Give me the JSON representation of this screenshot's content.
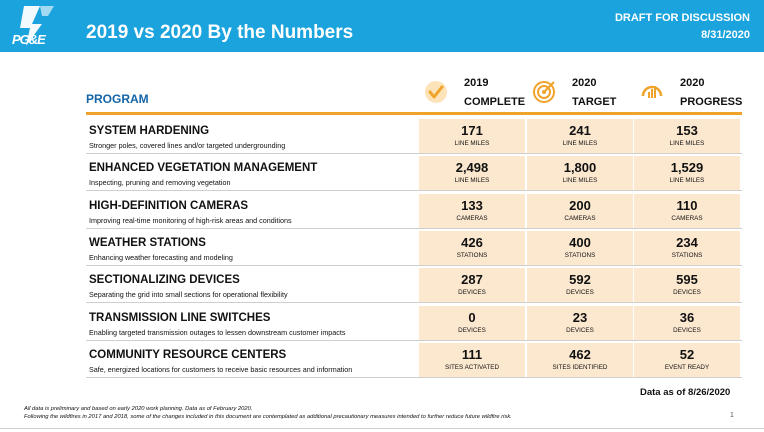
{
  "header": {
    "logo_text": "PG&E",
    "title": "2019 vs 2020 By the Numbers",
    "draft_line1": "DRAFT FOR DISCUSSION",
    "draft_line2": "8/31/2020"
  },
  "section_label": "PROGRAM",
  "columns": [
    {
      "line1": "2019",
      "line2": "COMPLETE",
      "icon": "checkmark-icon"
    },
    {
      "line1": "2020",
      "line2": "TARGET",
      "icon": "target-icon"
    },
    {
      "line1": "2020",
      "line2": "PROGRESS",
      "icon": "progress-gauge-icon"
    }
  ],
  "rows": [
    {
      "title": "SYSTEM HARDENING",
      "desc": "Stronger poles, covered lines and/or targeted undergrounding",
      "cells": [
        {
          "value": "171",
          "unit": "LINE MILES"
        },
        {
          "value": "241",
          "unit": "LINE MILES"
        },
        {
          "value": "153",
          "unit": "LINE MILES"
        }
      ]
    },
    {
      "title": "ENHANCED VEGETATION MANAGEMENT",
      "desc": "Inspecting, pruning and removing vegetation",
      "cells": [
        {
          "value": "2,498",
          "unit": "LINE MILES"
        },
        {
          "value": "1,800",
          "unit": "LINE MILES"
        },
        {
          "value": "1,529",
          "unit": "LINE MILES"
        }
      ]
    },
    {
      "title": "HIGH-DEFINITION CAMERAS",
      "desc": "Improving real-time monitoring of high-risk areas and conditions",
      "cells": [
        {
          "value": "133",
          "unit": "CAMERAS"
        },
        {
          "value": "200",
          "unit": "CAMERAS"
        },
        {
          "value": "110",
          "unit": "CAMERAS"
        }
      ]
    },
    {
      "title": "WEATHER STATIONS",
      "desc": "Enhancing weather forecasting and modeling",
      "cells": [
        {
          "value": "426",
          "unit": "STATIONS"
        },
        {
          "value": "400",
          "unit": "STATIONS"
        },
        {
          "value": "234",
          "unit": "STATIONS"
        }
      ]
    },
    {
      "title": "SECTIONALIZING DEVICES",
      "desc": "Separating the grid into small sections for operational flexibility",
      "cells": [
        {
          "value": "287",
          "unit": "DEVICES"
        },
        {
          "value": "592",
          "unit": "DEVICES"
        },
        {
          "value": "595",
          "unit": "DEVICES"
        }
      ]
    },
    {
      "title": "TRANSMISSION LINE SWITCHES",
      "desc": "Enabling targeted transmission outages to lessen downstream customer impacts",
      "cells": [
        {
          "value": "0",
          "unit": "DEVICES"
        },
        {
          "value": "23",
          "unit": "DEVICES"
        },
        {
          "value": "36",
          "unit": "DEVICES"
        }
      ]
    },
    {
      "title": "COMMUNITY RESOURCE CENTERS",
      "desc": "Safe, energized locations for customers to receive basic resources and information",
      "cells": [
        {
          "value": "111",
          "unit": "SITES ACTIVATED"
        },
        {
          "value": "462",
          "unit": "SITES IDENTIFIED"
        },
        {
          "value": "52",
          "unit": "EVENT READY"
        }
      ]
    }
  ],
  "data_as_of": "Data as of 8/26/2020",
  "footnote_line1": "All data is preliminary and based on early 2020 work planning. Data as of February 2020.",
  "footnote_line2": "Following the wildfires in 2017 and 2018, some of the changes included in this document are contemplated as additional precautionary measures intended to further reduce future wildfire risk.",
  "page_number": "1",
  "colors": {
    "header_blue": "#1aa3dc",
    "accent_orange": "#f0a32a",
    "program_blue": "#1565a6",
    "cell_fill": "#fbe8cf"
  }
}
